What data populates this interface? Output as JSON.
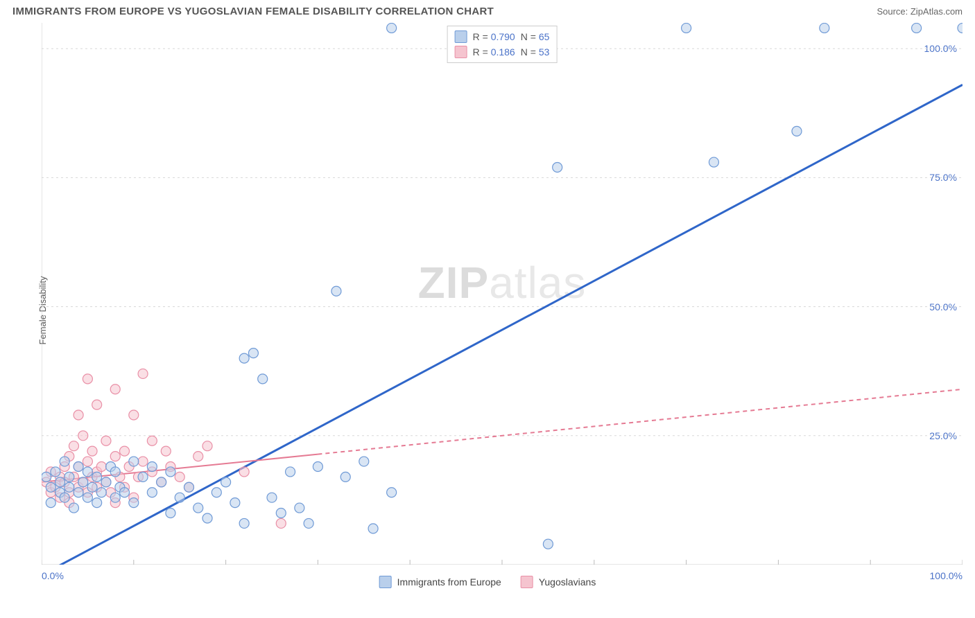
{
  "title": "IMMIGRANTS FROM EUROPE VS YUGOSLAVIAN FEMALE DISABILITY CORRELATION CHART",
  "source_label": "Source: ZipAtlas.com",
  "ylabel": "Female Disability",
  "watermark": {
    "bold": "ZIP",
    "light": "atlas"
  },
  "chart": {
    "type": "scatter-with-regression",
    "background_color": "#ffffff",
    "grid_color": "#d8d8d8",
    "axis_color": "#cccccc",
    "tick_color": "#bbbbbb",
    "xlim": [
      0,
      100
    ],
    "ylim": [
      0,
      105
    ],
    "xticks": [
      0,
      100
    ],
    "xtick_labels": [
      "0.0%",
      "100.0%"
    ],
    "xminor_step": 10,
    "yticks": [
      25,
      50,
      75,
      100
    ],
    "ytick_labels": [
      "25.0%",
      "50.0%",
      "75.0%",
      "100.0%"
    ],
    "label_color": "#4a72c8",
    "label_fontsize": 14,
    "marker_radius": 7,
    "marker_stroke_width": 1.2,
    "series": [
      {
        "name": "Immigrants from Europe",
        "fill": "#b9cfeb",
        "stroke": "#6f9ad6",
        "fill_opacity": 0.55,
        "R": 0.79,
        "N": 65,
        "regression": {
          "x0": 0,
          "y0": -2,
          "x1": 100,
          "y1": 93,
          "color": "#2f66c9",
          "width": 3,
          "dash": "none",
          "solid_until_x": 100
        },
        "points": [
          [
            0.5,
            17
          ],
          [
            1,
            15
          ],
          [
            1,
            12
          ],
          [
            1.5,
            18
          ],
          [
            2,
            14
          ],
          [
            2,
            16
          ],
          [
            2.5,
            13
          ],
          [
            2.5,
            20
          ],
          [
            3,
            15
          ],
          [
            3,
            17
          ],
          [
            3.5,
            11
          ],
          [
            4,
            14
          ],
          [
            4,
            19
          ],
          [
            4.5,
            16
          ],
          [
            5,
            13
          ],
          [
            5,
            18
          ],
          [
            5.5,
            15
          ],
          [
            6,
            12
          ],
          [
            6,
            17
          ],
          [
            6.5,
            14
          ],
          [
            7,
            16
          ],
          [
            7.5,
            19
          ],
          [
            8,
            13
          ],
          [
            8,
            18
          ],
          [
            8.5,
            15
          ],
          [
            9,
            14
          ],
          [
            10,
            12
          ],
          [
            10,
            20
          ],
          [
            11,
            17
          ],
          [
            12,
            14
          ],
          [
            12,
            19
          ],
          [
            13,
            16
          ],
          [
            14,
            10
          ],
          [
            14,
            18
          ],
          [
            15,
            13
          ],
          [
            16,
            15
          ],
          [
            17,
            11
          ],
          [
            18,
            9
          ],
          [
            19,
            14
          ],
          [
            20,
            16
          ],
          [
            21,
            12
          ],
          [
            22,
            8
          ],
          [
            22,
            40
          ],
          [
            23,
            41
          ],
          [
            24,
            36
          ],
          [
            25,
            13
          ],
          [
            26,
            10
          ],
          [
            27,
            18
          ],
          [
            28,
            11
          ],
          [
            29,
            8
          ],
          [
            30,
            19
          ],
          [
            32,
            53
          ],
          [
            33,
            17
          ],
          [
            35,
            20
          ],
          [
            36,
            7
          ],
          [
            38,
            14
          ],
          [
            55,
            4
          ],
          [
            56,
            77
          ],
          [
            70,
            104
          ],
          [
            73,
            78
          ],
          [
            82,
            84
          ],
          [
            85,
            104
          ],
          [
            95,
            104
          ],
          [
            100,
            104
          ],
          [
            38,
            104
          ]
        ]
      },
      {
        "name": "Yugoslavians",
        "fill": "#f5c4cf",
        "stroke": "#e98fa6",
        "fill_opacity": 0.55,
        "R": 0.186,
        "N": 53,
        "regression": {
          "x0": 0,
          "y0": 16,
          "x1": 100,
          "y1": 34,
          "color": "#e57a93",
          "width": 2,
          "dash": "6 5",
          "solid_until_x": 30
        },
        "points": [
          [
            0.5,
            16
          ],
          [
            1,
            14
          ],
          [
            1,
            18
          ],
          [
            1.5,
            15
          ],
          [
            2,
            13
          ],
          [
            2,
            17
          ],
          [
            2.5,
            16
          ],
          [
            2.5,
            19
          ],
          [
            3,
            14
          ],
          [
            3,
            21
          ],
          [
            3,
            12
          ],
          [
            3.5,
            17
          ],
          [
            3.5,
            23
          ],
          [
            4,
            15
          ],
          [
            4,
            19
          ],
          [
            4,
            29
          ],
          [
            4.5,
            16
          ],
          [
            4.5,
            25
          ],
          [
            5,
            14
          ],
          [
            5,
            20
          ],
          [
            5,
            36
          ],
          [
            5.5,
            17
          ],
          [
            5.5,
            22
          ],
          [
            6,
            15
          ],
          [
            6,
            31
          ],
          [
            6,
            18
          ],
          [
            6.5,
            19
          ],
          [
            7,
            16
          ],
          [
            7,
            24
          ],
          [
            7.5,
            14
          ],
          [
            8,
            12
          ],
          [
            8,
            21
          ],
          [
            8,
            34
          ],
          [
            8.5,
            17
          ],
          [
            9,
            15
          ],
          [
            9,
            22
          ],
          [
            9.5,
            19
          ],
          [
            10,
            13
          ],
          [
            10,
            29
          ],
          [
            10.5,
            17
          ],
          [
            11,
            20
          ],
          [
            11,
            37
          ],
          [
            12,
            18
          ],
          [
            12,
            24
          ],
          [
            13,
            16
          ],
          [
            13.5,
            22
          ],
          [
            14,
            19
          ],
          [
            15,
            17
          ],
          [
            16,
            15
          ],
          [
            17,
            21
          ],
          [
            18,
            23
          ],
          [
            22,
            18
          ],
          [
            26,
            8
          ]
        ]
      }
    ],
    "top_legend": {
      "rows": [
        {
          "swatch_fill": "#b9cfeb",
          "swatch_stroke": "#6f9ad6",
          "r_label": "R =",
          "r_val": "0.790",
          "n_label": "N =",
          "n_val": "65"
        },
        {
          "swatch_fill": "#f5c4cf",
          "swatch_stroke": "#e98fa6",
          "r_label": "R =",
          "r_val": "0.186",
          "n_label": "N =",
          "n_val": "53"
        }
      ]
    },
    "bottom_legend": [
      {
        "swatch_fill": "#b9cfeb",
        "swatch_stroke": "#6f9ad6",
        "label": "Immigrants from Europe"
      },
      {
        "swatch_fill": "#f5c4cf",
        "swatch_stroke": "#e98fa6",
        "label": "Yugoslavians"
      }
    ]
  }
}
